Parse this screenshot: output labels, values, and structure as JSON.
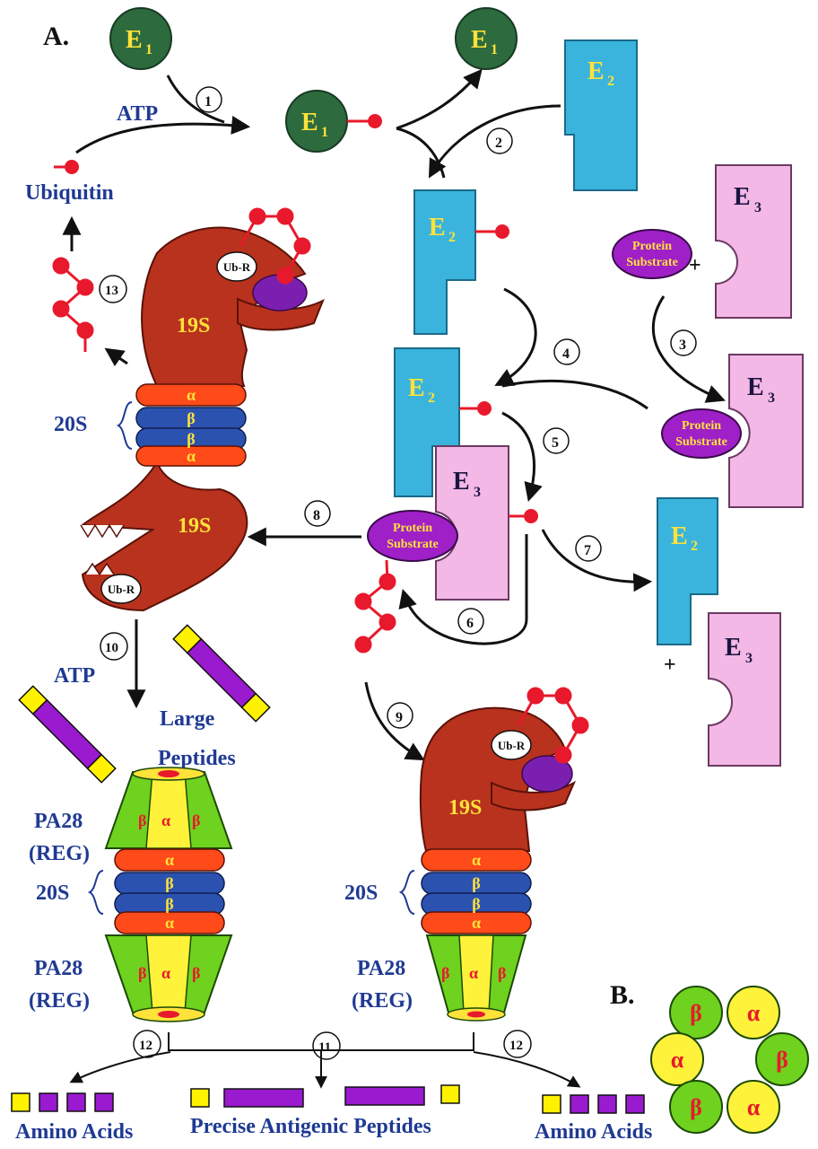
{
  "panel_a": "A.",
  "panel_b": "B.",
  "enzymes": {
    "e1": "E",
    "e2": "E",
    "e3": "E",
    "sub1": "1",
    "sub2": "2",
    "sub3": "3"
  },
  "atp": "ATP",
  "ubiquitin": "Ubiquitin",
  "protein_substrate": {
    "line1": "Protein",
    "line2": "Substrate"
  },
  "ubr": "Ub-R",
  "cap_19s": "19S",
  "core_20s": "20S",
  "alpha": "α",
  "beta": "β",
  "pa28": {
    "line1": "PA28",
    "line2": "(REG)"
  },
  "large_peptides": {
    "line1": "Large",
    "line2": "Peptides"
  },
  "amino_acids": "Amino Acids",
  "precise_peptides": "Precise Antigenic Peptides",
  "plus": "+",
  "steps": [
    "1",
    "2",
    "3",
    "4",
    "5",
    "6",
    "7",
    "8",
    "9",
    "10",
    "11",
    "12",
    "13"
  ],
  "colors": {
    "e1": "#2d6a3e",
    "e2": "#3ab4dc",
    "e3": "#f3b8e6",
    "substrate": "#a020c8",
    "proteasome": "#b8321e",
    "alpha_ring": "#ff4a1a",
    "beta_ring": "#2c52b0",
    "pa28_green": "#6fd21e",
    "pa28_yellow": "#fff23a",
    "ubiquitin": "#e8192c",
    "peptide": "#9a1ad0",
    "amino_yellow": "#fff200",
    "label_blue": "#1f3a93"
  }
}
